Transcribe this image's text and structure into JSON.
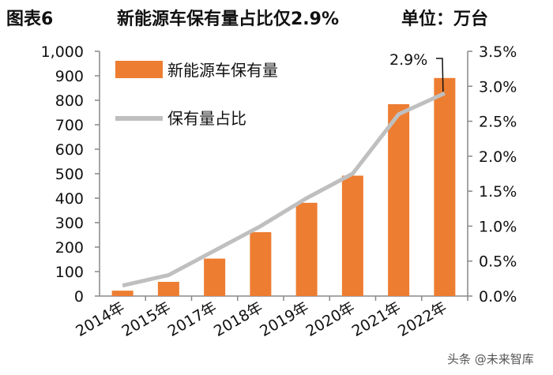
{
  "header": {
    "figure_label": "图表6",
    "title": "新能源车保有量占比仅2.9%",
    "unit": "单位：万台"
  },
  "watermark": {
    "text": "头条 @未来智库"
  },
  "colors": {
    "bar": "#ED7D31",
    "line": "#BFBFBF",
    "axis": "#888888"
  },
  "chart_data": {
    "type": "bar",
    "categories": [
      "2014年",
      "2015年",
      "2017年",
      "2018年",
      "2019年",
      "2020年",
      "2021年",
      "2022年"
    ],
    "series": [
      {
        "name": "新能源车保有量",
        "type": "bar",
        "axis": "left",
        "values": [
          22,
          58,
          153,
          261,
          381,
          492,
          784,
          891
        ]
      },
      {
        "name": "保有量占比",
        "type": "line",
        "axis": "right",
        "values": [
          0.0015,
          0.003,
          0.0065,
          0.01,
          0.014,
          0.0175,
          0.026,
          0.029
        ]
      }
    ],
    "y_left": {
      "lim": [
        0,
        1000
      ],
      "ticks": [
        "0",
        "100",
        "200",
        "300",
        "400",
        "500",
        "600",
        "700",
        "800",
        "900",
        "1,000"
      ]
    },
    "y_right": {
      "lim": [
        0,
        0.035
      ],
      "ticks": [
        "0.0%",
        "0.5%",
        "1.0%",
        "1.5%",
        "2.0%",
        "2.5%",
        "3.0%",
        "3.5%"
      ]
    },
    "annotation": {
      "text": "2.9%",
      "series": "保有量占比",
      "category": "2022年"
    },
    "legend": "top-left",
    "grid": false
  }
}
